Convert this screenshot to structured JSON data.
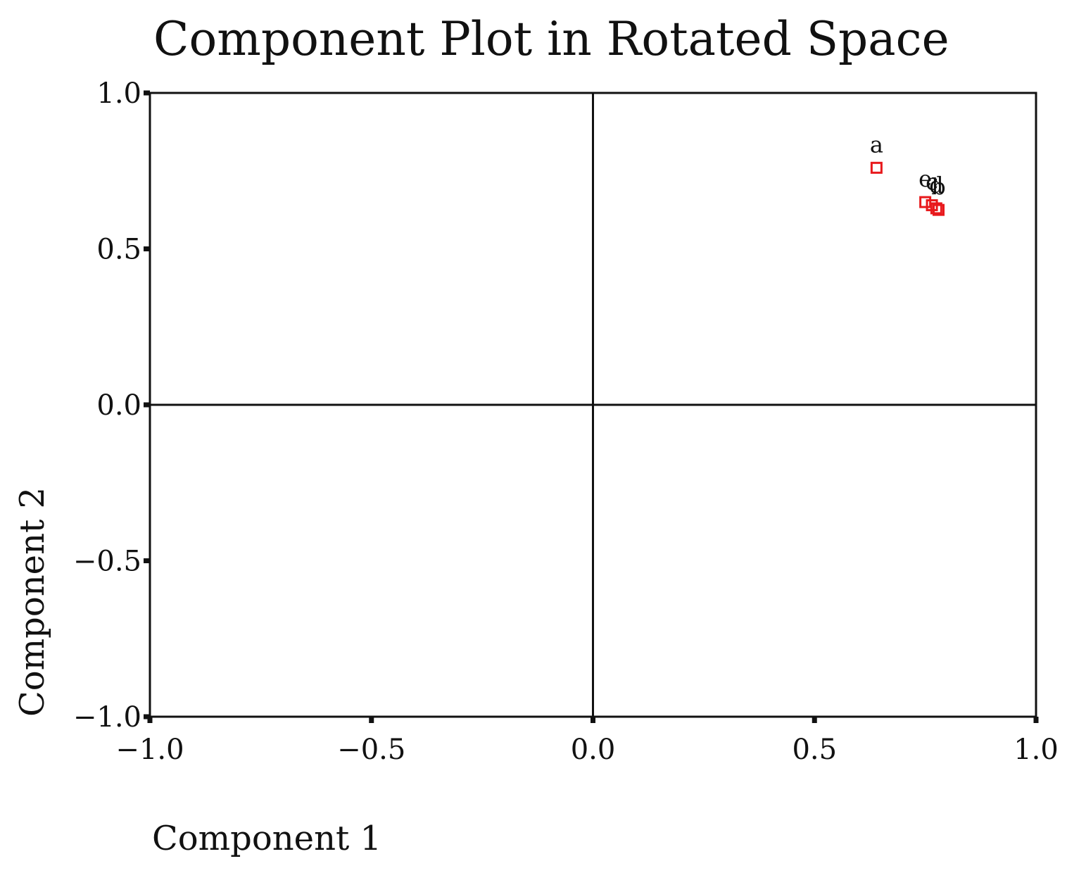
{
  "chart_data": {
    "type": "scatter",
    "title": "Component Plot in Rotated Space",
    "xlabel": "Component 1",
    "ylabel": "Component 2",
    "xlim": [
      -1.0,
      1.0
    ],
    "ylim": [
      -1.0,
      1.0
    ],
    "x_ticks": [
      {
        "value": -1.0,
        "label": "−1.0"
      },
      {
        "value": -0.5,
        "label": "−0.5"
      },
      {
        "value": 0.0,
        "label": "0.0"
      },
      {
        "value": 0.5,
        "label": "0.5"
      },
      {
        "value": 1.0,
        "label": "1.0"
      }
    ],
    "y_ticks": [
      {
        "value": 1.0,
        "label": "1.0"
      },
      {
        "value": 0.5,
        "label": "0.5"
      },
      {
        "value": 0.0,
        "label": "0.0"
      },
      {
        "value": -0.5,
        "label": "−0.5"
      },
      {
        "value": -1.0,
        "label": "−1.0"
      }
    ],
    "reference_lines": {
      "x": 0.0,
      "y": 0.0
    },
    "grid": false,
    "marker": "hollow-square",
    "marker_color": "#e8191c",
    "points": [
      {
        "label": "a",
        "x": 0.64,
        "y": 0.76
      },
      {
        "label": "e",
        "x": 0.75,
        "y": 0.65
      },
      {
        "label": "c",
        "x": 0.765,
        "y": 0.64
      },
      {
        "label": "d",
        "x": 0.775,
        "y": 0.63
      },
      {
        "label": "b",
        "x": 0.78,
        "y": 0.625
      }
    ]
  }
}
